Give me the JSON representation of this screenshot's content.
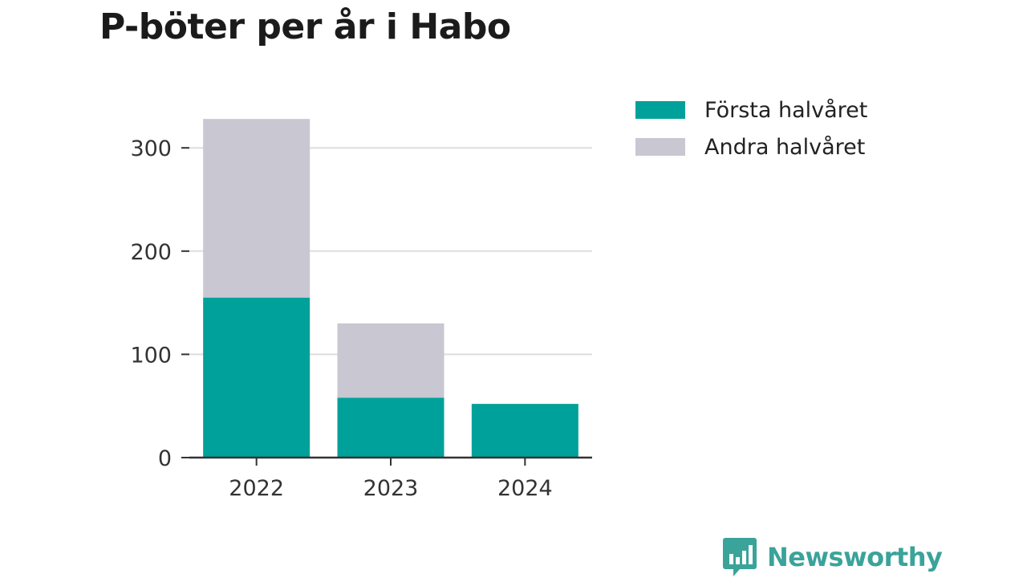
{
  "title": "P-böter per år i Habo",
  "legend": {
    "first_label": "Första halvåret",
    "second_label": "Andra halvåret"
  },
  "brand": {
    "name": "Newsworthy",
    "icon": "bar-chart-speech-bubble-icon"
  },
  "colors": {
    "first": "#00a19a",
    "second": "#c8c7d2",
    "grid": "#dedede",
    "axis": "#333333"
  },
  "chart_data": {
    "type": "bar",
    "stacked": true,
    "title": "P-böter per år i Habo",
    "xlabel": "",
    "ylabel": "",
    "categories": [
      "2022",
      "2023",
      "2024"
    ],
    "series": [
      {
        "name": "Första halvåret",
        "values": [
          155,
          58,
          52
        ]
      },
      {
        "name": "Andra halvåret",
        "values": [
          173,
          72,
          0
        ]
      }
    ],
    "ylim": [
      0,
      330
    ],
    "yticks": [
      0,
      100,
      200,
      300
    ],
    "grid": true,
    "legend_position": "top-right"
  }
}
